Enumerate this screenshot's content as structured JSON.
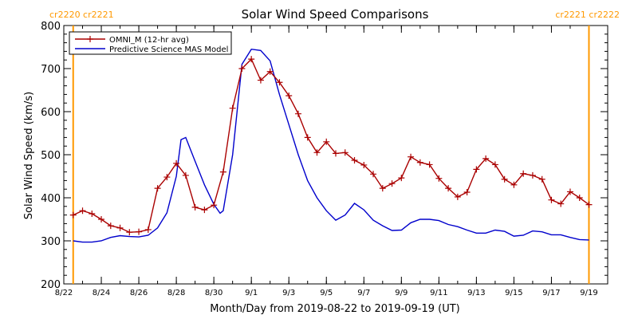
{
  "chart_data": {
    "type": "line",
    "title": "Solar Wind Speed Comparisons",
    "xlabel": "Month/Day from 2019-08-22 to 2019-09-19 (UT)",
    "ylabel": "Solar Wind Speed (km/s)",
    "xlim": [
      "2019-08-22",
      "2019-09-20"
    ],
    "ylim": [
      200,
      800
    ],
    "y_ticks": [
      200,
      300,
      400,
      500,
      600,
      700,
      800
    ],
    "x_tick_labels": [
      {
        "label": "8/22",
        "date": "2019-08-22"
      },
      {
        "label": "8/24",
        "date": "2019-08-24"
      },
      {
        "label": "8/26",
        "date": "2019-08-26"
      },
      {
        "label": "8/28",
        "date": "2019-08-28"
      },
      {
        "label": "8/30",
        "date": "2019-08-30"
      },
      {
        "label": "9/1",
        "date": "2019-09-01"
      },
      {
        "label": "9/3",
        "date": "2019-09-03"
      },
      {
        "label": "9/5",
        "date": "2019-09-05"
      },
      {
        "label": "9/7",
        "date": "2019-09-07"
      },
      {
        "label": "9/9",
        "date": "2019-09-09"
      },
      {
        "label": "9/11",
        "date": "2019-09-11"
      },
      {
        "label": "9/13",
        "date": "2019-09-13"
      },
      {
        "label": "9/15",
        "date": "2019-09-15"
      },
      {
        "label": "9/17",
        "date": "2019-09-17"
      },
      {
        "label": "9/19",
        "date": "2019-09-19"
      }
    ],
    "legend_position": "top-left",
    "series": [
      {
        "name": "OMNI_M (12-hr avg)",
        "color": "#aa0000",
        "markers": "plus",
        "points": [
          [
            "2019-08-22T12:00",
            360
          ],
          [
            "2019-08-23T00:00",
            370
          ],
          [
            "2019-08-23T12:00",
            363
          ],
          [
            "2019-08-24T00:00",
            350
          ],
          [
            "2019-08-24T12:00",
            335
          ],
          [
            "2019-08-25T00:00",
            330
          ],
          [
            "2019-08-25T12:00",
            320
          ],
          [
            "2019-08-26T00:00",
            321
          ],
          [
            "2019-08-26T12:00",
            326
          ],
          [
            "2019-08-27T00:00",
            422
          ],
          [
            "2019-08-27T12:00",
            448
          ],
          [
            "2019-08-28T00:00",
            480
          ],
          [
            "2019-08-28T12:00",
            452
          ],
          [
            "2019-08-29T00:00",
            378
          ],
          [
            "2019-08-29T12:00",
            372
          ],
          [
            "2019-08-30T00:00",
            383
          ],
          [
            "2019-08-30T12:00",
            460
          ],
          [
            "2019-08-31T00:00",
            608
          ],
          [
            "2019-08-31T12:00",
            700
          ],
          [
            "2019-09-01T00:00",
            722
          ],
          [
            "2019-09-01T12:00",
            673
          ],
          [
            "2019-09-02T00:00",
            693
          ],
          [
            "2019-09-02T12:00",
            668
          ],
          [
            "2019-09-03T00:00",
            637
          ],
          [
            "2019-09-03T12:00",
            595
          ],
          [
            "2019-09-04T00:00",
            540
          ],
          [
            "2019-09-04T12:00",
            505
          ],
          [
            "2019-09-05T00:00",
            530
          ],
          [
            "2019-09-05T12:00",
            503
          ],
          [
            "2019-09-06T00:00",
            505
          ],
          [
            "2019-09-06T12:00",
            487
          ],
          [
            "2019-09-07T00:00",
            476
          ],
          [
            "2019-09-07T12:00",
            455
          ],
          [
            "2019-09-08T00:00",
            422
          ],
          [
            "2019-09-08T12:00",
            433
          ],
          [
            "2019-09-09T00:00",
            446
          ],
          [
            "2019-09-09T12:00",
            495
          ],
          [
            "2019-09-10T00:00",
            482
          ],
          [
            "2019-09-10T12:00",
            477
          ],
          [
            "2019-09-11T00:00",
            445
          ],
          [
            "2019-09-11T12:00",
            422
          ],
          [
            "2019-09-12T00:00",
            402
          ],
          [
            "2019-09-12T12:00",
            413
          ],
          [
            "2019-09-13T00:00",
            466
          ],
          [
            "2019-09-13T12:00",
            491
          ],
          [
            "2019-09-14T00:00",
            477
          ],
          [
            "2019-09-14T12:00",
            443
          ],
          [
            "2019-09-15T00:00",
            430
          ],
          [
            "2019-09-15T12:00",
            456
          ],
          [
            "2019-09-16T00:00",
            452
          ],
          [
            "2019-09-16T12:00",
            443
          ],
          [
            "2019-09-17T00:00",
            395
          ],
          [
            "2019-09-17T12:00",
            386
          ],
          [
            "2019-09-18T00:00",
            414
          ],
          [
            "2019-09-18T12:00",
            400
          ],
          [
            "2019-09-19T00:00",
            384
          ]
        ]
      },
      {
        "name": "Predictive Science MAS Model",
        "color": "#0000cc",
        "markers": "none",
        "points": [
          [
            "2019-08-22T12:00",
            300
          ],
          [
            "2019-08-23T00:00",
            297
          ],
          [
            "2019-08-23T12:00",
            297
          ],
          [
            "2019-08-24T00:00",
            300
          ],
          [
            "2019-08-24T12:00",
            308
          ],
          [
            "2019-08-25T00:00",
            312
          ],
          [
            "2019-08-25T12:00",
            310
          ],
          [
            "2019-08-26T00:00",
            309
          ],
          [
            "2019-08-26T12:00",
            313
          ],
          [
            "2019-08-27T00:00",
            330
          ],
          [
            "2019-08-27T12:00",
            365
          ],
          [
            "2019-08-28T00:00",
            450
          ],
          [
            "2019-08-28T06:00",
            535
          ],
          [
            "2019-08-28T12:00",
            540
          ],
          [
            "2019-08-29T00:00",
            485
          ],
          [
            "2019-08-29T12:00",
            430
          ],
          [
            "2019-08-30T00:00",
            385
          ],
          [
            "2019-08-30T08:00",
            364
          ],
          [
            "2019-08-30T12:00",
            370
          ],
          [
            "2019-08-31T00:00",
            500
          ],
          [
            "2019-08-31T12:00",
            710
          ],
          [
            "2019-09-01T00:00",
            745
          ],
          [
            "2019-09-01T12:00",
            742
          ],
          [
            "2019-09-02T00:00",
            718
          ],
          [
            "2019-09-02T12:00",
            640
          ],
          [
            "2019-09-03T00:00",
            570
          ],
          [
            "2019-09-03T12:00",
            500
          ],
          [
            "2019-09-04T00:00",
            440
          ],
          [
            "2019-09-04T12:00",
            400
          ],
          [
            "2019-09-05T00:00",
            370
          ],
          [
            "2019-09-05T12:00",
            348
          ],
          [
            "2019-09-06T00:00",
            360
          ],
          [
            "2019-09-06T12:00",
            387
          ],
          [
            "2019-09-07T00:00",
            372
          ],
          [
            "2019-09-07T12:00",
            348
          ],
          [
            "2019-09-08T00:00",
            335
          ],
          [
            "2019-09-08T12:00",
            324
          ],
          [
            "2019-09-09T00:00",
            325
          ],
          [
            "2019-09-09T12:00",
            342
          ],
          [
            "2019-09-10T00:00",
            350
          ],
          [
            "2019-09-10T12:00",
            350
          ],
          [
            "2019-09-11T00:00",
            347
          ],
          [
            "2019-09-11T12:00",
            338
          ],
          [
            "2019-09-12T00:00",
            333
          ],
          [
            "2019-09-12T12:00",
            325
          ],
          [
            "2019-09-13T00:00",
            318
          ],
          [
            "2019-09-13T12:00",
            318
          ],
          [
            "2019-09-14T00:00",
            325
          ],
          [
            "2019-09-14T12:00",
            322
          ],
          [
            "2019-09-15T00:00",
            311
          ],
          [
            "2019-09-15T12:00",
            313
          ],
          [
            "2019-09-16T00:00",
            323
          ],
          [
            "2019-09-16T12:00",
            321
          ],
          [
            "2019-09-17T00:00",
            314
          ],
          [
            "2019-09-17T12:00",
            314
          ],
          [
            "2019-09-18T00:00",
            308
          ],
          [
            "2019-09-18T12:00",
            303
          ],
          [
            "2019-09-19T00:00",
            302
          ]
        ]
      }
    ],
    "carrington_markers": {
      "color": "#ff9900",
      "lines": [
        {
          "date": "2019-08-22T12:00",
          "label": "cr2220 cr2221",
          "label_side": "left"
        },
        {
          "date": "2019-09-19T00:00",
          "label": "cr2221 cr2222",
          "label_side": "right"
        }
      ]
    }
  }
}
